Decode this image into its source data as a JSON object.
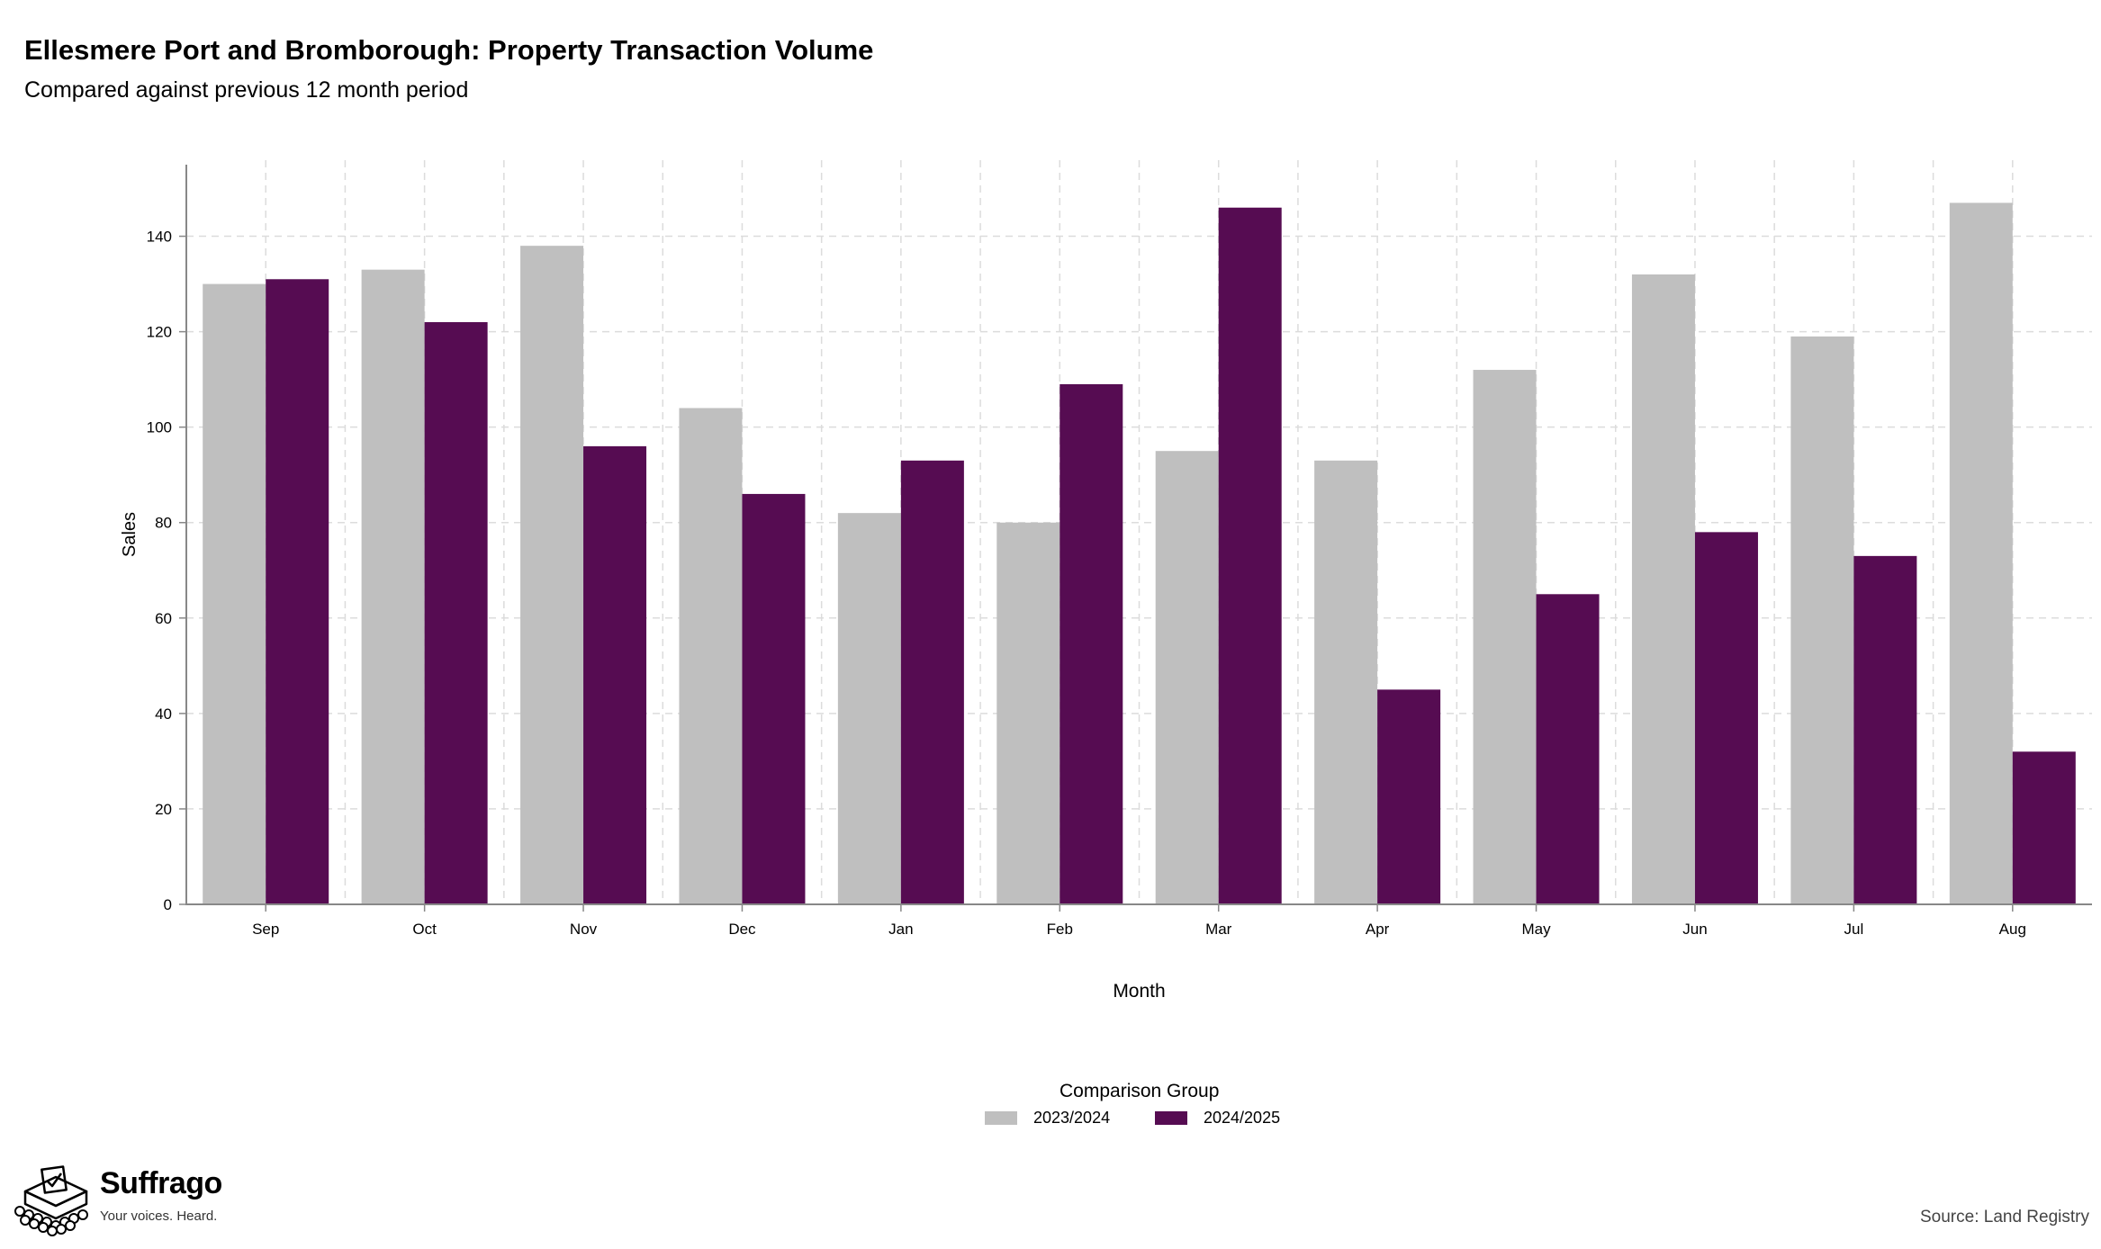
{
  "title": "Ellesmere Port and Bromborough: Property Transaction Volume",
  "subtitle": "Compared against previous 12 month period",
  "source": "Source: Land Registry",
  "brand": {
    "name": "Suffrago",
    "tagline": "Your voices. Heard."
  },
  "legend": {
    "title": "Comparison Group",
    "placement": "bottom-center"
  },
  "colors": {
    "series_2023_2024": "#bfbfbf",
    "series_2024_2025": "#560c52",
    "grid": "#dcdcdc",
    "axis": "#888888"
  },
  "chart_data": {
    "type": "bar",
    "xlabel": "Month",
    "ylabel": "Sales",
    "ylim": [
      0,
      155
    ],
    "yticks": [
      0,
      20,
      40,
      60,
      80,
      100,
      120,
      140
    ],
    "grid": true,
    "categories": [
      "Sep",
      "Oct",
      "Nov",
      "Dec",
      "Jan",
      "Feb",
      "Mar",
      "Apr",
      "May",
      "Jun",
      "Jul",
      "Aug"
    ],
    "series": [
      {
        "name": "2023/2024",
        "color": "#bfbfbf",
        "values": [
          130,
          133,
          138,
          104,
          82,
          80,
          95,
          93,
          112,
          132,
          119,
          147
        ]
      },
      {
        "name": "2024/2025",
        "color": "#560c52",
        "values": [
          131,
          122,
          96,
          86,
          93,
          109,
          146,
          45,
          65,
          78,
          73,
          32
        ]
      }
    ]
  }
}
